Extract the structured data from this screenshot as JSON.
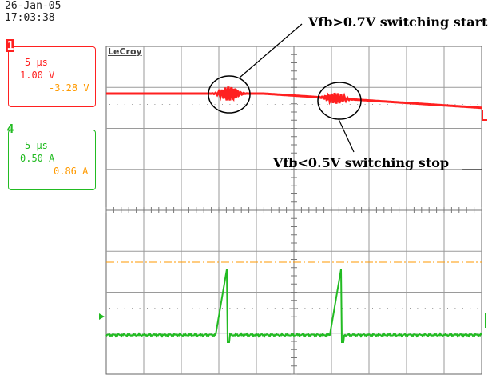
{
  "timestamp": {
    "date": "26-Jan-05",
    "time": "17:03:38"
  },
  "brand": "LeCroy",
  "channels": [
    {
      "id": "1",
      "timebase": "5 µs",
      "volts_per_div": "1.00 V",
      "offset": "-3.28 V",
      "color": "#ff2020"
    },
    {
      "id": "4",
      "timebase": "5 µs",
      "volts_per_div": "0.50 A",
      "offset": "0.86 A",
      "color": "#22bb22"
    }
  ],
  "annotations": {
    "start": "Vfb>0.7V switching start",
    "stop": "Vfb<0.5V switching stop"
  },
  "colors": {
    "trace1": "#ff2020",
    "trace4": "#22bb22",
    "reference": "#ff9a00",
    "grid": "#9a9a9a"
  }
}
